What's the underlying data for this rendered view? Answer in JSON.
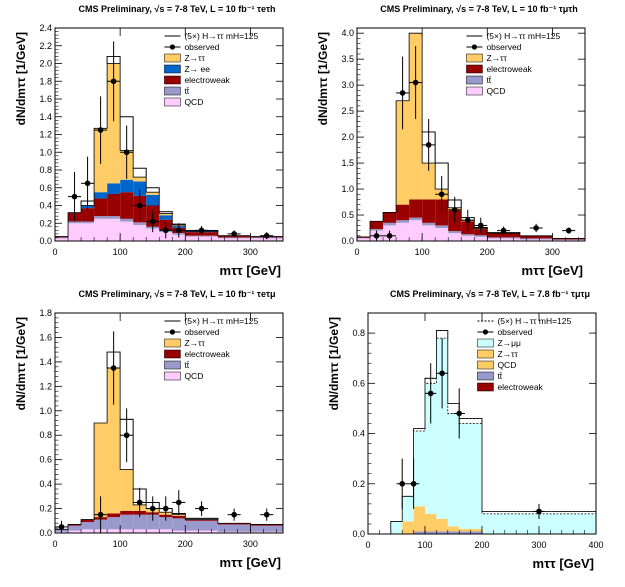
{
  "chart_data": [
    {
      "type": "bar",
      "title": "CMS Preliminary, √s = 7-8 TeV, L = 10 fb⁻¹ τeτh",
      "xlabel": "mττ [GeV]",
      "ylabel": "dN/dmττ [1/GeV]",
      "x_ticks": [
        "0",
        "100",
        "200",
        "300"
      ],
      "y_ticks": [
        "0.0",
        "0.2",
        "0.4",
        "0.6",
        "0.8",
        "1.0",
        "1.2",
        "1.4",
        "1.6",
        "1.8",
        "2.0",
        "2.2",
        "2.4"
      ],
      "xlim": [
        0,
        350
      ],
      "ylim": [
        0,
        2.4
      ],
      "legend_position": "top-right",
      "bin_edges": [
        0,
        20,
        40,
        60,
        80,
        100,
        120,
        140,
        160,
        180,
        200,
        250,
        300,
        350
      ],
      "series": [
        {
          "name": "QCD",
          "color": "#ffccff",
          "values": [
            0.03,
            0.2,
            0.2,
            0.25,
            0.25,
            0.22,
            0.18,
            0.14,
            0.1,
            0.07,
            0.05,
            0.03,
            0.03
          ]
        },
        {
          "name": "tt̄",
          "color": "#9999cc",
          "values": [
            0.01,
            0.02,
            0.02,
            0.03,
            0.03,
            0.03,
            0.03,
            0.02,
            0.02,
            0.02,
            0.01,
            0.01,
            0.01
          ]
        },
        {
          "name": "electroweak",
          "color": "#990000",
          "values": [
            0.01,
            0.1,
            0.15,
            0.2,
            0.25,
            0.3,
            0.3,
            0.24,
            0.12,
            0.06,
            0.04,
            0.02,
            0.01
          ]
        },
        {
          "name": "Z→ ee",
          "color": "#0066cc",
          "values": [
            0.0,
            0.0,
            0.03,
            0.07,
            0.12,
            0.14,
            0.16,
            0.12,
            0.05,
            0.02,
            0.01,
            0.0,
            0.0
          ]
        },
        {
          "name": "Z→ττ",
          "color": "#ffcc66",
          "values": [
            0.0,
            0.0,
            0.0,
            0.72,
            1.35,
            0.33,
            0.05,
            0.03,
            0.02,
            0.01,
            0.0,
            0.0,
            0.0
          ]
        },
        {
          "name": "(5×) H→ττ  mH=125",
          "color": "#ffffff",
          "values": [
            0.0,
            0.0,
            0.05,
            0.0,
            0.08,
            0.38,
            0.1,
            0.05,
            0.02,
            0.01,
            0.01,
            0.0,
            0.0
          ]
        }
      ],
      "observed": {
        "name": "observed",
        "x": [
          30,
          50,
          70,
          90,
          110,
          130,
          150,
          170,
          190,
          225,
          275,
          325
        ],
        "y": [
          0.5,
          0.65,
          1.25,
          1.8,
          1.0,
          0.4,
          0.22,
          0.12,
          0.12,
          0.12,
          0.08,
          0.06
        ],
        "yerr": [
          0.28,
          0.3,
          0.38,
          0.45,
          0.3,
          0.18,
          0.12,
          0.09,
          0.08,
          0.05,
          0.04,
          0.04
        ]
      }
    },
    {
      "type": "bar",
      "title": "CMS Preliminary, √s = 7-8 TeV, L = 10 fb⁻¹ τμτh",
      "xlabel": "mττ [GeV]",
      "ylabel": "dN/dmττ [1/GeV]",
      "x_ticks": [
        "0",
        "100",
        "200",
        "300"
      ],
      "y_ticks": [
        "0.0",
        "0.5",
        "1.0",
        "1.5",
        "2.0",
        "2.5",
        "3.0",
        "3.5",
        "4.0"
      ],
      "xlim": [
        0,
        350
      ],
      "ylim": [
        0,
        4.1
      ],
      "legend_position": "top-right",
      "bin_edges": [
        0,
        20,
        40,
        60,
        80,
        100,
        120,
        140,
        160,
        180,
        200,
        250,
        300,
        350
      ],
      "series": [
        {
          "name": "QCD",
          "color": "#ffccff",
          "values": [
            0.05,
            0.2,
            0.3,
            0.35,
            0.4,
            0.3,
            0.25,
            0.15,
            0.1,
            0.08,
            0.05,
            0.03,
            0.02
          ]
        },
        {
          "name": "tt̄",
          "color": "#9999cc",
          "values": [
            0.01,
            0.03,
            0.05,
            0.05,
            0.05,
            0.05,
            0.05,
            0.04,
            0.03,
            0.03,
            0.02,
            0.02,
            0.01
          ]
        },
        {
          "name": "electroweak",
          "color": "#990000",
          "values": [
            0.02,
            0.15,
            0.2,
            0.3,
            0.35,
            0.45,
            0.5,
            0.4,
            0.25,
            0.12,
            0.08,
            0.05,
            0.02
          ]
        },
        {
          "name": "Z→ττ",
          "color": "#ffcc66",
          "values": [
            0.0,
            0.0,
            0.0,
            2.0,
            3.2,
            0.7,
            0.2,
            0.05,
            0.02,
            0.01,
            0.0,
            0.0,
            0.0
          ]
        },
        {
          "name": "(5×) H→ττ  mH=125",
          "color": "#ffffff",
          "values": [
            0.0,
            0.0,
            0.0,
            0.0,
            0.0,
            0.6,
            0.5,
            0.15,
            0.05,
            0.02,
            0.01,
            0.0,
            0.0
          ]
        }
      ],
      "observed": {
        "name": "observed",
        "x": [
          30,
          50,
          70,
          90,
          110,
          130,
          150,
          170,
          190,
          225,
          275,
          325
        ],
        "y": [
          0.1,
          0.1,
          2.85,
          3.05,
          1.85,
          0.9,
          0.6,
          0.4,
          0.3,
          0.2,
          0.25,
          0.2
        ],
        "yerr": [
          0.1,
          0.1,
          0.7,
          0.7,
          0.5,
          0.35,
          0.25,
          0.2,
          0.15,
          0.08,
          0.08,
          0.06
        ]
      }
    },
    {
      "type": "bar",
      "title": "CMS Preliminary, √s = 7-8 TeV, L = 10 fb⁻¹ τeτμ",
      "xlabel": "mττ [GeV]",
      "ylabel": "dN/dmττ [1/GeV]",
      "x_ticks": [
        "0",
        "100",
        "200",
        "300"
      ],
      "y_ticks": [
        "0.0",
        "0.2",
        "0.4",
        "0.6",
        "0.8",
        "1.0",
        "1.2",
        "1.4",
        "1.6",
        "1.8"
      ],
      "xlim": [
        0,
        350
      ],
      "ylim": [
        0,
        1.8
      ],
      "legend_position": "top-right",
      "bin_edges": [
        0,
        20,
        40,
        60,
        80,
        100,
        120,
        140,
        160,
        180,
        200,
        250,
        300,
        350
      ],
      "series": [
        {
          "name": "QCD",
          "color": "#ffccff",
          "values": [
            0.01,
            0.02,
            0.03,
            0.03,
            0.03,
            0.03,
            0.03,
            0.03,
            0.03,
            0.02,
            0.02,
            0.01,
            0.01
          ]
        },
        {
          "name": "tt̄",
          "color": "#9999cc",
          "values": [
            0.02,
            0.04,
            0.06,
            0.08,
            0.1,
            0.12,
            0.12,
            0.12,
            0.1,
            0.1,
            0.08,
            0.06,
            0.05
          ]
        },
        {
          "name": "electroweak",
          "color": "#990000",
          "values": [
            0.0,
            0.01,
            0.02,
            0.02,
            0.03,
            0.03,
            0.03,
            0.02,
            0.02,
            0.02,
            0.01,
            0.01,
            0.01
          ]
        },
        {
          "name": "Z→ττ",
          "color": "#ffcc66",
          "values": [
            0.0,
            0.0,
            0.0,
            0.77,
            1.19,
            0.34,
            0.05,
            0.03,
            0.02,
            0.01,
            0.0,
            0.0,
            0.0
          ]
        },
        {
          "name": "(5×) H→ττ  mH=125",
          "color": "#ffffff",
          "values": [
            0.0,
            0.0,
            0.0,
            0.0,
            0.13,
            0.41,
            0.13,
            0.05,
            0.03,
            0.01,
            0.01,
            0.0,
            0.0
          ]
        }
      ],
      "observed": {
        "name": "observed",
        "x": [
          10,
          70,
          90,
          110,
          130,
          150,
          170,
          190,
          225,
          275,
          325
        ],
        "y": [
          0.05,
          0.15,
          1.35,
          0.8,
          0.25,
          0.2,
          0.2,
          0.25,
          0.2,
          0.15,
          0.15
        ],
        "yerr": [
          0.05,
          0.15,
          0.3,
          0.22,
          0.12,
          0.1,
          0.1,
          0.1,
          0.06,
          0.05,
          0.05
        ]
      }
    },
    {
      "type": "bar",
      "title": "CMS Preliminary, √s = 7-8 TeV, L = 7.8 fb⁻¹ τμτμ",
      "xlabel": "mττ [GeV]",
      "ylabel": "dN/dmττ [1/GeV]",
      "x_ticks": [
        "0",
        "100",
        "200",
        "300",
        "400"
      ],
      "y_ticks": [
        "0.0",
        "0.2",
        "0.4",
        "0.6",
        "0.8"
      ],
      "xlim": [
        0,
        400
      ],
      "ylim": [
        0,
        0.88
      ],
      "legend_position": "top-right",
      "bin_edges": [
        0,
        20,
        40,
        60,
        80,
        100,
        120,
        140,
        160,
        200,
        400
      ],
      "series": [
        {
          "name": "electroweak",
          "color": "#990000",
          "values": [
            0,
            0,
            0,
            0,
            0,
            0,
            0,
            0,
            0,
            0
          ]
        },
        {
          "name": "tt̄",
          "color": "#9999cc",
          "values": [
            0,
            0,
            0,
            0,
            0.01,
            0.01,
            0.01,
            0.01,
            0.01,
            0.0
          ]
        },
        {
          "name": "QCD",
          "color": "#ffcc66",
          "values": [
            0,
            0,
            0,
            0,
            0.02,
            0.02,
            0.02,
            0.01,
            0.01,
            0.0
          ]
        },
        {
          "name": "Z→ττ",
          "color": "#ffcc66",
          "values": [
            0,
            0,
            0,
            0.05,
            0.08,
            0.05,
            0.03,
            0.01,
            0.0,
            0.0
          ]
        },
        {
          "name": "Z→μμ",
          "color": "#ccffff",
          "values": [
            0,
            0,
            0.05,
            0.1,
            0.3,
            0.52,
            0.72,
            0.45,
            0.42,
            0.08
          ]
        },
        {
          "name": "(5×) H→ττ  mH=125",
          "color": "#ffffff",
          "values": [
            0,
            0,
            0,
            0,
            0.01,
            0.02,
            0.03,
            0.04,
            0.02,
            0.01
          ]
        }
      ],
      "observed": {
        "name": "observed",
        "x": [
          60,
          80,
          110,
          130,
          160,
          300
        ],
        "y": [
          0.2,
          0.2,
          0.56,
          0.64,
          0.48,
          0.09
        ],
        "yerr": [
          0.1,
          0.1,
          0.12,
          0.14,
          0.1,
          0.03
        ]
      }
    }
  ]
}
